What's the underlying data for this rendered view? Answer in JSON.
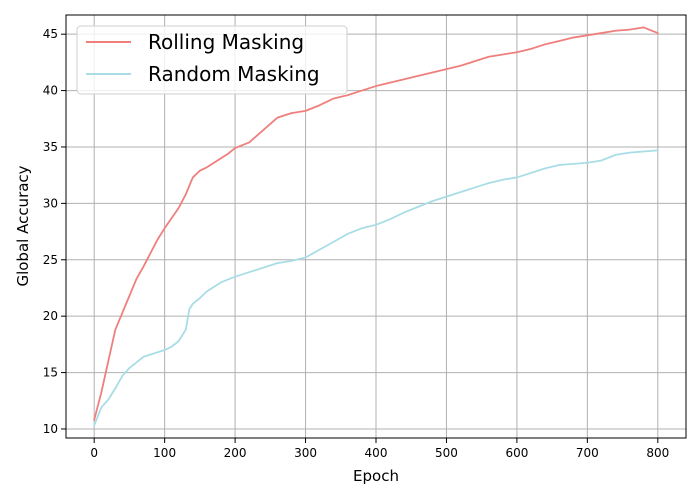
{
  "chart_data": {
    "type": "line",
    "title": "",
    "xlabel": "Epoch",
    "ylabel": "Global Accuracy",
    "xlim": [
      -40,
      840
    ],
    "ylim": [
      9.2,
      46.7
    ],
    "xticks": [
      0,
      100,
      200,
      300,
      400,
      500,
      600,
      700,
      800
    ],
    "yticks": [
      10,
      15,
      20,
      25,
      30,
      35,
      40,
      45
    ],
    "grid": true,
    "legend": {
      "position": "top-left"
    },
    "series": [
      {
        "name": "Rolling Masking",
        "color": "#ef7f7d",
        "x": [
          0,
          10,
          20,
          30,
          40,
          50,
          60,
          70,
          80,
          90,
          100,
          110,
          120,
          130,
          140,
          150,
          160,
          170,
          180,
          190,
          200,
          220,
          240,
          260,
          280,
          300,
          320,
          340,
          360,
          380,
          400,
          420,
          440,
          460,
          480,
          500,
          520,
          540,
          560,
          580,
          600,
          620,
          640,
          660,
          680,
          700,
          720,
          740,
          760,
          780,
          800
        ],
        "y": [
          10.8,
          13.2,
          16.0,
          18.8,
          20.3,
          21.8,
          23.3,
          24.4,
          25.6,
          26.8,
          27.8,
          28.7,
          29.6,
          30.8,
          32.3,
          32.9,
          33.2,
          33.6,
          34.0,
          34.4,
          34.9,
          35.4,
          36.5,
          37.6,
          38.0,
          38.2,
          38.7,
          39.3,
          39.6,
          40.0,
          40.4,
          40.7,
          41.0,
          41.3,
          41.6,
          41.9,
          42.2,
          42.6,
          43.0,
          43.2,
          43.4,
          43.7,
          44.1,
          44.4,
          44.7,
          44.9,
          45.1,
          45.3,
          45.4,
          45.6,
          45.1
        ]
      },
      {
        "name": "Random Masking",
        "color": "#a9dde6",
        "x": [
          0,
          10,
          20,
          30,
          40,
          50,
          60,
          70,
          80,
          90,
          100,
          110,
          120,
          130,
          135,
          140,
          150,
          160,
          170,
          180,
          200,
          220,
          240,
          260,
          280,
          300,
          320,
          340,
          360,
          380,
          400,
          420,
          440,
          460,
          480,
          500,
          520,
          540,
          560,
          580,
          600,
          620,
          640,
          660,
          680,
          700,
          720,
          740,
          760,
          780,
          800
        ],
        "y": [
          10.3,
          11.9,
          12.6,
          13.6,
          14.7,
          15.4,
          15.9,
          16.4,
          16.6,
          16.8,
          17.0,
          17.3,
          17.8,
          18.8,
          20.6,
          21.1,
          21.6,
          22.2,
          22.6,
          23.0,
          23.5,
          23.9,
          24.3,
          24.7,
          24.9,
          25.2,
          25.9,
          26.6,
          27.3,
          27.8,
          28.1,
          28.6,
          29.2,
          29.7,
          30.2,
          30.6,
          31.0,
          31.4,
          31.8,
          32.1,
          32.3,
          32.7,
          33.1,
          33.4,
          33.5,
          33.6,
          33.8,
          34.3,
          34.5,
          34.6,
          34.7
        ]
      }
    ]
  }
}
